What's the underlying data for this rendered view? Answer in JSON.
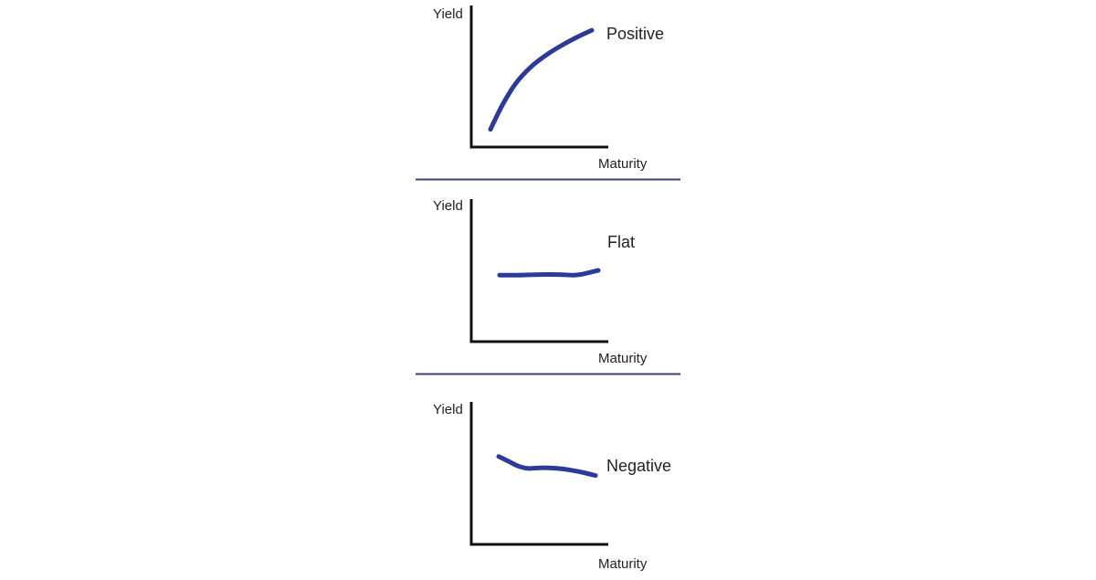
{
  "colors": {
    "axis": "#111111",
    "curve": "#2b3b9a",
    "separator": "#3a3f7a",
    "text": "#222222"
  },
  "chart_data": [
    {
      "type": "line",
      "title": "",
      "xlabel": "Maturity",
      "ylabel": "Yield",
      "series": [
        {
          "name": "Positive",
          "x": [
            0.0,
            0.12,
            0.25,
            0.4,
            0.55,
            0.7,
            0.85,
            1.0
          ],
          "values": [
            0.15,
            0.36,
            0.54,
            0.68,
            0.78,
            0.86,
            0.93,
            0.99
          ]
        }
      ],
      "xlim": [
        0,
        1
      ],
      "ylim": [
        0,
        1.2
      ],
      "grid": false,
      "legend": "none"
    },
    {
      "type": "line",
      "title": "",
      "xlabel": "Maturity",
      "ylabel": "Yield",
      "series": [
        {
          "name": "Flat",
          "x": [
            0.0,
            0.2,
            0.4,
            0.6,
            0.75,
            0.85,
            1.0
          ],
          "values": [
            0.56,
            0.56,
            0.565,
            0.565,
            0.56,
            0.57,
            0.6
          ]
        }
      ],
      "xlim": [
        0,
        1
      ],
      "ylim": [
        0,
        1.2
      ],
      "grid": false,
      "legend": "none"
    },
    {
      "type": "line",
      "title": "",
      "xlabel": "Maturity",
      "ylabel": "Yield",
      "series": [
        {
          "name": "Negative",
          "x": [
            0.0,
            0.1,
            0.2,
            0.3,
            0.45,
            0.6,
            0.75,
            0.9,
            1.0
          ],
          "values": [
            0.74,
            0.7,
            0.66,
            0.64,
            0.645,
            0.64,
            0.625,
            0.6,
            0.58
          ]
        }
      ],
      "xlim": [
        0,
        1
      ],
      "ylim": [
        0,
        1.2
      ],
      "grid": false,
      "legend": "none"
    }
  ]
}
